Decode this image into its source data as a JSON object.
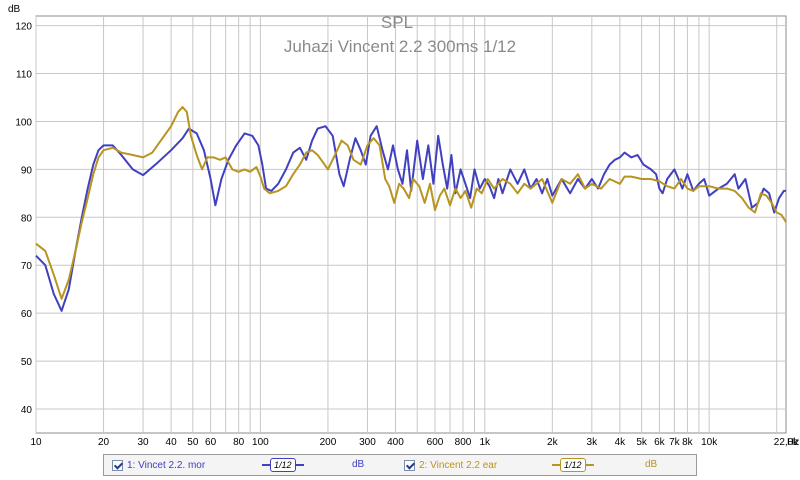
{
  "chart_data": {
    "type": "line",
    "title": "SPL",
    "subtitle": "Juhazi Vincent 2.2 300ms 1/12",
    "ylabel": "dB",
    "xlabel": "Hz",
    "ylim": [
      35,
      122
    ],
    "xlim": [
      10,
      22000
    ],
    "x_scale": "log",
    "grid": true,
    "y_ticks": [
      "120",
      "110",
      "100",
      "90",
      "80",
      "70",
      "60",
      "50",
      "40"
    ],
    "x_ticks": [
      {
        "v": 10,
        "label": "10"
      },
      {
        "v": 20,
        "label": "20"
      },
      {
        "v": 30,
        "label": "30"
      },
      {
        "v": 40,
        "label": "40"
      },
      {
        "v": 50,
        "label": "50"
      },
      {
        "v": 60,
        "label": "60"
      },
      {
        "v": 80,
        "label": "80"
      },
      {
        "v": 100,
        "label": "100"
      },
      {
        "v": 200,
        "label": "200"
      },
      {
        "v": 300,
        "label": "300"
      },
      {
        "v": 400,
        "label": "400"
      },
      {
        "v": 600,
        "label": "600"
      },
      {
        "v": 800,
        "label": "800"
      },
      {
        "v": 1000,
        "label": "1k"
      },
      {
        "v": 2000,
        "label": "2k"
      },
      {
        "v": 3000,
        "label": "3k"
      },
      {
        "v": 4000,
        "label": "4k"
      },
      {
        "v": 5000,
        "label": "5k"
      },
      {
        "v": 6000,
        "label": "6k"
      },
      {
        "v": 7000,
        "label": "7k"
      },
      {
        "v": 8000,
        "label": "8k"
      },
      {
        "v": 10000,
        "label": "10k"
      },
      {
        "v": 22000,
        "label": "22,0k"
      }
    ],
    "series": [
      {
        "name": "1: Vincet 2.2. mor",
        "color": "#4040c0",
        "points": [
          [
            10,
            72
          ],
          [
            11,
            70
          ],
          [
            12,
            64
          ],
          [
            13,
            60.5
          ],
          [
            14,
            65
          ],
          [
            15,
            73
          ],
          [
            16,
            80
          ],
          [
            17,
            86
          ],
          [
            18,
            91
          ],
          [
            19,
            94
          ],
          [
            20,
            95
          ],
          [
            22,
            95
          ],
          [
            24,
            93
          ],
          [
            27,
            90
          ],
          [
            30,
            88.8
          ],
          [
            35,
            91.5
          ],
          [
            40,
            94
          ],
          [
            45,
            96.5
          ],
          [
            48,
            98.5
          ],
          [
            52,
            97.5
          ],
          [
            56,
            94
          ],
          [
            60,
            88
          ],
          [
            63,
            82.5
          ],
          [
            67,
            88
          ],
          [
            72,
            92
          ],
          [
            78,
            95
          ],
          [
            85,
            97.5
          ],
          [
            92,
            97
          ],
          [
            98,
            95
          ],
          [
            102,
            91
          ],
          [
            106,
            86
          ],
          [
            112,
            85.5
          ],
          [
            120,
            87
          ],
          [
            130,
            90
          ],
          [
            140,
            93.5
          ],
          [
            150,
            94.5
          ],
          [
            160,
            92
          ],
          [
            170,
            96
          ],
          [
            180,
            98.5
          ],
          [
            195,
            99
          ],
          [
            210,
            97
          ],
          [
            225,
            89
          ],
          [
            235,
            86.5
          ],
          [
            250,
            92
          ],
          [
            265,
            96.5
          ],
          [
            280,
            94
          ],
          [
            295,
            91
          ],
          [
            310,
            97
          ],
          [
            330,
            99
          ],
          [
            350,
            94
          ],
          [
            370,
            90
          ],
          [
            390,
            95
          ],
          [
            410,
            90
          ],
          [
            430,
            87
          ],
          [
            450,
            94
          ],
          [
            470,
            85.5
          ],
          [
            500,
            96
          ],
          [
            530,
            88
          ],
          [
            560,
            95
          ],
          [
            590,
            87
          ],
          [
            620,
            97
          ],
          [
            650,
            91
          ],
          [
            680,
            86
          ],
          [
            710,
            93
          ],
          [
            740,
            85
          ],
          [
            780,
            90
          ],
          [
            820,
            87
          ],
          [
            860,
            84
          ],
          [
            900,
            90
          ],
          [
            950,
            86
          ],
          [
            1000,
            88
          ],
          [
            1050,
            86.5
          ],
          [
            1100,
            84
          ],
          [
            1150,
            88
          ],
          [
            1200,
            85
          ],
          [
            1300,
            90
          ],
          [
            1400,
            87
          ],
          [
            1500,
            90
          ],
          [
            1600,
            86
          ],
          [
            1700,
            88
          ],
          [
            1800,
            85
          ],
          [
            1900,
            88
          ],
          [
            2000,
            84.5
          ],
          [
            2200,
            88
          ],
          [
            2400,
            85
          ],
          [
            2600,
            88
          ],
          [
            2800,
            86
          ],
          [
            3000,
            88
          ],
          [
            3200,
            86
          ],
          [
            3400,
            89
          ],
          [
            3600,
            91
          ],
          [
            3800,
            92
          ],
          [
            4000,
            92.5
          ],
          [
            4200,
            93.5
          ],
          [
            4500,
            92.5
          ],
          [
            4800,
            93
          ],
          [
            5100,
            91
          ],
          [
            5500,
            90
          ],
          [
            5800,
            89
          ],
          [
            6000,
            86
          ],
          [
            6200,
            85
          ],
          [
            6500,
            88
          ],
          [
            7000,
            90
          ],
          [
            7300,
            88
          ],
          [
            7600,
            86
          ],
          [
            8000,
            89
          ],
          [
            8500,
            85.5
          ],
          [
            9000,
            87
          ],
          [
            9500,
            88
          ],
          [
            10000,
            84.5
          ],
          [
            11000,
            86
          ],
          [
            12000,
            87
          ],
          [
            13000,
            89
          ],
          [
            13500,
            86
          ],
          [
            14500,
            88
          ],
          [
            15500,
            82
          ],
          [
            16500,
            83
          ],
          [
            17500,
            86
          ],
          [
            18500,
            85
          ],
          [
            19500,
            81
          ],
          [
            20500,
            84
          ],
          [
            21500,
            85.5
          ],
          [
            22000,
            85.5
          ]
        ]
      },
      {
        "name": "2: Vincent 2.2 ear",
        "color": "#b89420",
        "points": [
          [
            10,
            74.5
          ],
          [
            11,
            73
          ],
          [
            12,
            68
          ],
          [
            13,
            63
          ],
          [
            14,
            67
          ],
          [
            15,
            73
          ],
          [
            16,
            79
          ],
          [
            17,
            84
          ],
          [
            18,
            89
          ],
          [
            19,
            92.5
          ],
          [
            20,
            94
          ],
          [
            22,
            94.5
          ],
          [
            24,
            93.5
          ],
          [
            27,
            93
          ],
          [
            30,
            92.5
          ],
          [
            33,
            93.5
          ],
          [
            36,
            96
          ],
          [
            40,
            99
          ],
          [
            43,
            102
          ],
          [
            45,
            103
          ],
          [
            47,
            102
          ],
          [
            49,
            97
          ],
          [
            52,
            93
          ],
          [
            55,
            90
          ],
          [
            58,
            92.5
          ],
          [
            62,
            92.5
          ],
          [
            66,
            92
          ],
          [
            70,
            92.5
          ],
          [
            75,
            90
          ],
          [
            80,
            89.5
          ],
          [
            85,
            90
          ],
          [
            90,
            89.5
          ],
          [
            96,
            90.5
          ],
          [
            100,
            88.5
          ],
          [
            104,
            86
          ],
          [
            110,
            85
          ],
          [
            120,
            85.5
          ],
          [
            130,
            86.5
          ],
          [
            140,
            89
          ],
          [
            150,
            91
          ],
          [
            160,
            93.5
          ],
          [
            170,
            94
          ],
          [
            180,
            93
          ],
          [
            190,
            91.5
          ],
          [
            200,
            90
          ],
          [
            215,
            93
          ],
          [
            230,
            96
          ],
          [
            245,
            95
          ],
          [
            260,
            92
          ],
          [
            280,
            91
          ],
          [
            300,
            95
          ],
          [
            320,
            96.5
          ],
          [
            340,
            95
          ],
          [
            360,
            88
          ],
          [
            375,
            86.5
          ],
          [
            395,
            83
          ],
          [
            415,
            87
          ],
          [
            435,
            86
          ],
          [
            460,
            84
          ],
          [
            480,
            88
          ],
          [
            510,
            86.5
          ],
          [
            540,
            83
          ],
          [
            570,
            87
          ],
          [
            600,
            81.5
          ],
          [
            630,
            84.5
          ],
          [
            660,
            86
          ],
          [
            700,
            82.5
          ],
          [
            740,
            86
          ],
          [
            780,
            84
          ],
          [
            820,
            85.5
          ],
          [
            870,
            82
          ],
          [
            920,
            86
          ],
          [
            970,
            85
          ],
          [
            1030,
            88
          ],
          [
            1100,
            86
          ],
          [
            1200,
            88
          ],
          [
            1300,
            87
          ],
          [
            1400,
            85
          ],
          [
            1500,
            87
          ],
          [
            1600,
            86
          ],
          [
            1800,
            88
          ],
          [
            2000,
            83
          ],
          [
            2200,
            88
          ],
          [
            2400,
            87
          ],
          [
            2600,
            89
          ],
          [
            2800,
            86
          ],
          [
            3000,
            87
          ],
          [
            3300,
            86
          ],
          [
            3600,
            88
          ],
          [
            4000,
            87
          ],
          [
            4200,
            88.5
          ],
          [
            4500,
            88.5
          ],
          [
            5000,
            88
          ],
          [
            5500,
            88
          ],
          [
            6000,
            87.5
          ],
          [
            6500,
            86.5
          ],
          [
            7000,
            86
          ],
          [
            7500,
            88
          ],
          [
            8000,
            86
          ],
          [
            8500,
            85.5
          ],
          [
            9000,
            86.5
          ],
          [
            10000,
            86.5
          ],
          [
            11000,
            86
          ],
          [
            12000,
            86
          ],
          [
            13000,
            85.5
          ],
          [
            14000,
            84
          ],
          [
            15000,
            82
          ],
          [
            16000,
            81
          ],
          [
            17000,
            85
          ],
          [
            18000,
            84.5
          ],
          [
            19000,
            83
          ],
          [
            20000,
            81
          ],
          [
            21000,
            80.5
          ],
          [
            22000,
            79
          ]
        ]
      }
    ]
  },
  "legend": {
    "items": [
      {
        "name": "1: Vincet 2.2. mor",
        "smoothing": "1/12",
        "unit": "dB",
        "color": "#4040c0"
      },
      {
        "name": "2: Vincent 2.2 ear",
        "smoothing": "1/12",
        "unit": "dB",
        "color": "#b89420"
      }
    ]
  }
}
